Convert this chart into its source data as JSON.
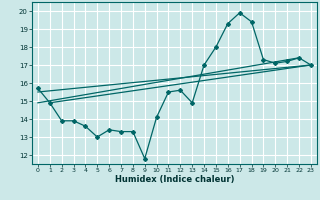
{
  "title": "",
  "xlabel": "Humidex (Indice chaleur)",
  "bg_color": "#cce8e8",
  "grid_color": "#ffffff",
  "line_color": "#006666",
  "xlim": [
    -0.5,
    23.5
  ],
  "ylim": [
    11.5,
    20.5
  ],
  "xticks": [
    0,
    1,
    2,
    3,
    4,
    5,
    6,
    7,
    8,
    9,
    10,
    11,
    12,
    13,
    14,
    15,
    16,
    17,
    18,
    19,
    20,
    21,
    22,
    23
  ],
  "yticks": [
    12,
    13,
    14,
    15,
    16,
    17,
    18,
    19,
    20
  ],
  "main_x": [
    0,
    1,
    2,
    3,
    4,
    5,
    6,
    7,
    8,
    9,
    10,
    11,
    12,
    13,
    14,
    15,
    16,
    17,
    18,
    19,
    20,
    21,
    22,
    23
  ],
  "main_y": [
    15.7,
    14.9,
    13.9,
    13.9,
    13.6,
    13.0,
    13.4,
    13.3,
    13.3,
    11.8,
    14.1,
    15.5,
    15.6,
    14.9,
    17.0,
    18.0,
    19.3,
    19.9,
    19.4,
    17.3,
    17.1,
    17.2,
    17.4,
    17.0
  ],
  "trend1_x": [
    0,
    23
  ],
  "trend1_y": [
    15.5,
    17.0
  ],
  "trend2_x": [
    1,
    23
  ],
  "trend2_y": [
    14.9,
    17.0
  ],
  "trend3_x": [
    0,
    22
  ],
  "trend3_y": [
    14.9,
    17.4
  ]
}
